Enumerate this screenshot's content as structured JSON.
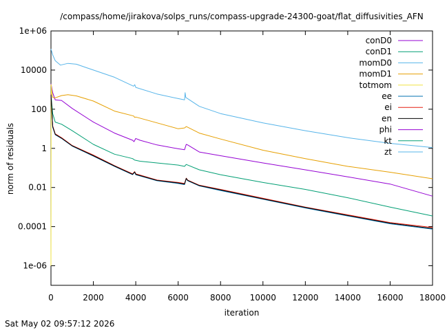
{
  "chart_data": {
    "type": "line",
    "title": "/compass/home/jirakova/solps_runs/compass-upgrade-24300-goat/flat_diffusivities_AFN",
    "xlabel": "iteration",
    "ylabel": "norm of residuals",
    "xlim": [
      0,
      18000
    ],
    "ylim": [
      1e-07,
      1000000.0
    ],
    "yscale": "log",
    "grid": false,
    "legend_position": "top-right",
    "x_ticks": [
      "0",
      "2000",
      "4000",
      "6000",
      "8000",
      "10000",
      "12000",
      "14000",
      "16000",
      "18000"
    ],
    "y_ticks": [
      {
        "value": 1e-06,
        "label": "1e-06"
      },
      {
        "value": 0.0001,
        "label": "0.0001"
      },
      {
        "value": 0.01,
        "label": "0.01"
      },
      {
        "value": 1,
        "label": "1"
      },
      {
        "value": 100,
        "label": "100"
      },
      {
        "value": 10000.0,
        "label": "10000"
      },
      {
        "value": 1000000.0,
        "label": "1e+06"
      }
    ],
    "series": [
      {
        "name": "conD0",
        "color": "#9400d3",
        "points": [
          [
            0,
            2000
          ],
          [
            80,
            700
          ],
          [
            200,
            300
          ],
          [
            500,
            280
          ],
          [
            1000,
            110
          ],
          [
            2000,
            22
          ],
          [
            3000,
            6
          ],
          [
            3850,
            2.6
          ],
          [
            3920,
            2.2
          ],
          [
            4000,
            3.2
          ],
          [
            4200,
            2.6
          ],
          [
            5000,
            1.5
          ],
          [
            6000,
            0.95
          ],
          [
            6300,
            0.85
          ],
          [
            6380,
            1.6
          ],
          [
            6450,
            1.5
          ],
          [
            7000,
            0.65
          ],
          [
            8000,
            0.42
          ],
          [
            10000,
            0.18
          ],
          [
            12000,
            0.08
          ],
          [
            14000,
            0.035
          ],
          [
            16000,
            0.015
          ],
          [
            18000,
            0.0036
          ]
        ]
      },
      {
        "name": "conD1",
        "color": "#009e73",
        "points": [
          [
            0,
            600
          ],
          [
            80,
            60
          ],
          [
            200,
            22
          ],
          [
            500,
            17
          ],
          [
            1000,
            8
          ],
          [
            2000,
            1.6
          ],
          [
            3000,
            0.5
          ],
          [
            3850,
            0.3
          ],
          [
            3950,
            0.25
          ],
          [
            4200,
            0.22
          ],
          [
            5000,
            0.18
          ],
          [
            6000,
            0.14
          ],
          [
            6300,
            0.12
          ],
          [
            6380,
            0.15
          ],
          [
            6450,
            0.14
          ],
          [
            7000,
            0.08
          ],
          [
            8000,
            0.045
          ],
          [
            10000,
            0.018
          ],
          [
            12000,
            0.008
          ],
          [
            14000,
            0.003
          ],
          [
            16000,
            0.001
          ],
          [
            18000,
            0.00035
          ]
        ]
      },
      {
        "name": "momD0",
        "color": "#56b4e9",
        "points": [
          [
            0,
            120000
          ],
          [
            80,
            60000
          ],
          [
            200,
            30000
          ],
          [
            450,
            18000
          ],
          [
            800,
            22000
          ],
          [
            1200,
            20000
          ],
          [
            2000,
            10000
          ],
          [
            3000,
            4300
          ],
          [
            3900,
            1500
          ],
          [
            3950,
            1800
          ],
          [
            4000,
            1300
          ],
          [
            5000,
            600
          ],
          [
            6000,
            350
          ],
          [
            6300,
            300
          ],
          [
            6330,
            700
          ],
          [
            6360,
            400
          ],
          [
            7000,
            140
          ],
          [
            8000,
            60
          ],
          [
            10000,
            20
          ],
          [
            12000,
            8
          ],
          [
            14000,
            3.5
          ],
          [
            16000,
            1.8
          ],
          [
            18000,
            1.1
          ]
        ]
      },
      {
        "name": "momD1",
        "color": "#e69f00",
        "points": [
          [
            0,
            1800
          ],
          [
            80,
            400
          ],
          [
            200,
            380
          ],
          [
            500,
            500
          ],
          [
            800,
            550
          ],
          [
            1200,
            480
          ],
          [
            2000,
            260
          ],
          [
            3000,
            80
          ],
          [
            3900,
            45
          ],
          [
            3950,
            38
          ],
          [
            4000,
            40
          ],
          [
            5000,
            20
          ],
          [
            6000,
            10
          ],
          [
            6300,
            11
          ],
          [
            6380,
            13
          ],
          [
            6450,
            12
          ],
          [
            7000,
            6
          ],
          [
            8000,
            3
          ],
          [
            10000,
            0.8
          ],
          [
            12000,
            0.3
          ],
          [
            14000,
            0.12
          ],
          [
            16000,
            0.06
          ],
          [
            18000,
            0.028
          ]
        ]
      },
      {
        "name": "totmom",
        "color": "#f0e442",
        "points": [
          [
            0,
            1e-06
          ],
          [
            10,
            1800
          ],
          [
            30,
            800
          ],
          [
            60,
            500
          ]
        ]
      },
      {
        "name": "ee",
        "color": "#0072b2",
        "points": [
          [
            0,
            500
          ],
          [
            80,
            12
          ],
          [
            200,
            5
          ],
          [
            500,
            3.2
          ],
          [
            1000,
            1.3
          ],
          [
            2000,
            0.4
          ],
          [
            3000,
            0.12
          ],
          [
            3850,
            0.045
          ],
          [
            3950,
            0.06
          ],
          [
            4000,
            0.045
          ],
          [
            5000,
            0.022
          ],
          [
            6000,
            0.016
          ],
          [
            6300,
            0.014
          ],
          [
            6380,
            0.028
          ],
          [
            6450,
            0.022
          ],
          [
            7000,
            0.012
          ],
          [
            8000,
            0.007
          ],
          [
            10000,
            0.0025
          ],
          [
            12000,
            0.0009
          ],
          [
            14000,
            0.00035
          ],
          [
            16000,
            0.00014
          ],
          [
            18000,
            7.5e-05
          ]
        ]
      },
      {
        "name": "ei",
        "color": "#e51e10",
        "points": [
          [
            0,
            600
          ],
          [
            80,
            14
          ],
          [
            200,
            5.5
          ],
          [
            500,
            3.5
          ],
          [
            1000,
            1.4
          ],
          [
            2000,
            0.45
          ],
          [
            3000,
            0.13
          ],
          [
            3850,
            0.05
          ],
          [
            3950,
            0.065
          ],
          [
            4000,
            0.05
          ],
          [
            5000,
            0.024
          ],
          [
            6000,
            0.018
          ],
          [
            6300,
            0.016
          ],
          [
            6380,
            0.03
          ],
          [
            6450,
            0.024
          ],
          [
            7000,
            0.013
          ],
          [
            8000,
            0.008
          ],
          [
            10000,
            0.0028
          ],
          [
            12000,
            0.001
          ],
          [
            14000,
            0.0004
          ],
          [
            16000,
            0.00016
          ],
          [
            18000,
            9e-05
          ]
        ]
      },
      {
        "name": "en",
        "color": "#000000",
        "points": [
          [
            0,
            550
          ],
          [
            80,
            13
          ],
          [
            200,
            5.2
          ],
          [
            500,
            3.3
          ],
          [
            1000,
            1.35
          ],
          [
            2000,
            0.42
          ],
          [
            3000,
            0.125
          ],
          [
            3850,
            0.047
          ],
          [
            3950,
            0.062
          ],
          [
            4000,
            0.047
          ],
          [
            5000,
            0.023
          ],
          [
            6000,
            0.017
          ],
          [
            6300,
            0.015
          ],
          [
            6380,
            0.029
          ],
          [
            6450,
            0.023
          ],
          [
            7000,
            0.0125
          ],
          [
            8000,
            0.0075
          ],
          [
            10000,
            0.0026
          ],
          [
            12000,
            0.00095
          ],
          [
            14000,
            0.00037
          ],
          [
            16000,
            0.00015
          ],
          [
            18000,
            8e-05
          ]
        ]
      },
      {
        "name": "phi",
        "color": "#9400d3",
        "points": []
      },
      {
        "name": "kt",
        "color": "#009e73",
        "points": []
      },
      {
        "name": "zt",
        "color": "#56b4e9",
        "points": []
      }
    ]
  },
  "footer": {
    "timestamp": "Sat May 02 09:57:12 2026"
  }
}
